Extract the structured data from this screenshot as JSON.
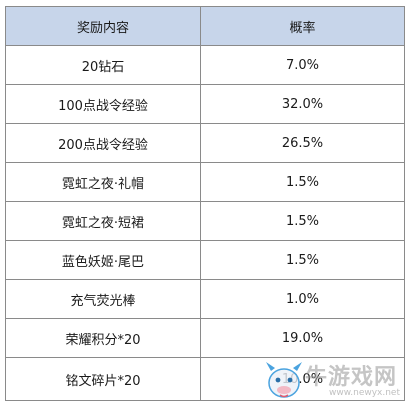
{
  "table": {
    "header": {
      "reward_content": "奖励内容",
      "probability": "概率"
    },
    "rows": [
      {
        "item": "20钻石",
        "rate": "7.0%"
      },
      {
        "item": "100点战令经验",
        "rate": "32.0%"
      },
      {
        "item": "200点战令经验",
        "rate": "26.5%"
      },
      {
        "item": "霓虹之夜·礼帽",
        "rate": "1.5%"
      },
      {
        "item": "霓虹之夜·短裙",
        "rate": "1.5%"
      },
      {
        "item": "蓝色妖姬·尾巴",
        "rate": "1.5%"
      },
      {
        "item": "充气荧光棒",
        "rate": "1.0%"
      },
      {
        "item": "荣耀积分*20",
        "rate": "19.0%"
      },
      {
        "item": "铭文碎片*20",
        "rate": "10.0%"
      }
    ]
  },
  "watermark": {
    "site_name": "牛游戏网",
    "site_url": "www.newyx.net",
    "logo_icon": "cow-mascot-icon"
  },
  "colors": {
    "header_background": "#c7d5ea",
    "border": "#8a8a8a",
    "logo_accent": "#4aa3df"
  }
}
